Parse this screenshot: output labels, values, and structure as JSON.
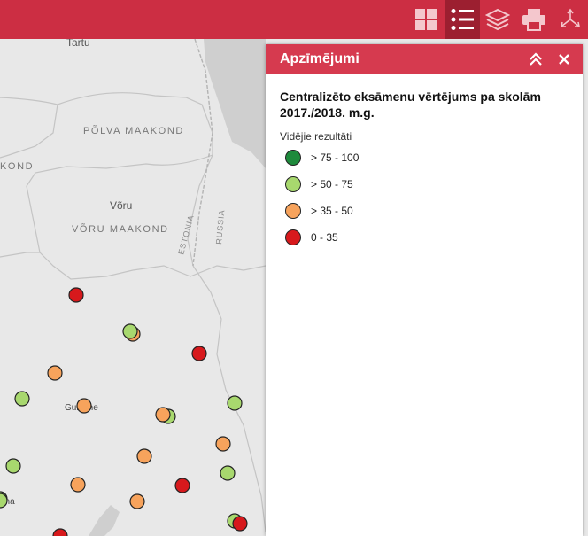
{
  "map": {
    "labels": {
      "tartu": "Tartu",
      "polva": "PÕLVA MAAKOND",
      "kond": "KOND",
      "voru": "Võru",
      "voru_maakond": "VÕRU MAAKOND",
      "estonia": "ESTONIA",
      "russia": "RUSSIA",
      "gulbene": "Gulbene",
      "ena": "ena"
    },
    "colors": {
      "land": "#e8e8e8",
      "border": "#bdbdbd",
      "water": "#c9c9c9",
      "class1": "#1e8a3c",
      "class2": "#a8d86e",
      "class3": "#f7a35c",
      "class4": "#d7191c"
    },
    "points": [
      {
        "class": "class4"
      },
      {
        "class": "class3"
      },
      {
        "class": "class2"
      },
      {
        "class": "class4"
      },
      {
        "class": "class3"
      },
      {
        "class": "class2"
      },
      {
        "class": "class3"
      },
      {
        "class": "class2"
      },
      {
        "class": "class3"
      },
      {
        "class": "class2"
      },
      {
        "class": "class3"
      },
      {
        "class": "class2"
      },
      {
        "class": "class3"
      },
      {
        "class": "class2"
      },
      {
        "class": "class4"
      },
      {
        "class": "class2"
      },
      {
        "class": "class3"
      },
      {
        "class": "class2"
      },
      {
        "class": "class3"
      },
      {
        "class": "class2"
      },
      {
        "class": "class4"
      },
      {
        "class": "class4"
      }
    ]
  },
  "toolbar": {
    "buttons": [
      {
        "name": "basemap-gallery-button",
        "icon": "grid-icon"
      },
      {
        "name": "legend-button",
        "icon": "list-icon",
        "active": true
      },
      {
        "name": "layers-button",
        "icon": "layers-icon"
      },
      {
        "name": "print-button",
        "icon": "printer-icon"
      },
      {
        "name": "share-button",
        "icon": "share-icon"
      }
    ]
  },
  "panel": {
    "title": "Apzīmējumi",
    "layer_title": "Centralizēto eksāmenu vērtējums pa skolām 2017./2018. m.g.",
    "field_label": "Vidējie rezultāti",
    "items": [
      {
        "label": "> 75 - 100",
        "color": "#1e8a3c"
      },
      {
        "label": "> 50 - 75",
        "color": "#a8d86e"
      },
      {
        "label": "> 35 - 50",
        "color": "#f7a35c"
      },
      {
        "label": "0 - 35",
        "color": "#d7191c"
      }
    ]
  }
}
